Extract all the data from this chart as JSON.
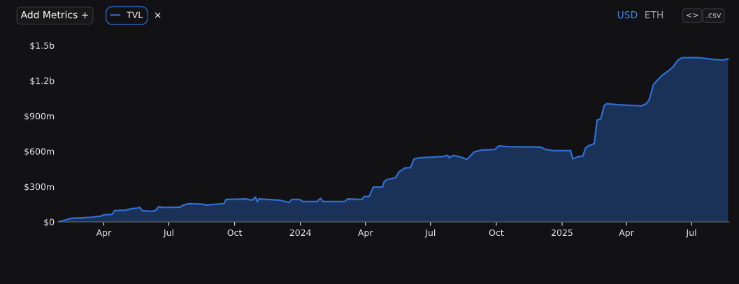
{
  "chart_data": {
    "type": "area",
    "legend": "top left",
    "grid": false,
    "marker": "none",
    "line_style": "solid",
    "annotations": [
      "Add Metrics +",
      "×",
      "USD",
      "ETH",
      "<>",
      ".csv"
    ],
    "xlim": [
      "2023-01-27",
      "2025-08-23"
    ],
    "xticks": [
      {
        "value": "2023-04-01",
        "label": "Apr"
      },
      {
        "value": "2023-07-01",
        "label": "Jul"
      },
      {
        "value": "2023-10-01",
        "label": "Oct"
      },
      {
        "value": "2024-01-01",
        "label": "2024"
      },
      {
        "value": "2024-04-01",
        "label": "Apr"
      },
      {
        "value": "2024-07-01",
        "label": "Jul"
      },
      {
        "value": "2024-10-01",
        "label": "Oct"
      },
      {
        "value": "2025-01-01",
        "label": "2025"
      },
      {
        "value": "2025-04-01",
        "label": "Apr"
      },
      {
        "value": "2025-07-01",
        "label": "Jul"
      }
    ],
    "ylim": [
      0,
      1500000000
    ],
    "yticks": [
      {
        "value": 0,
        "label": "$0"
      },
      {
        "value": 300000000,
        "label": "$300m"
      },
      {
        "value": 600000000,
        "label": "$600m"
      },
      {
        "value": 900000000,
        "label": "$900m"
      },
      {
        "value": 1200000000,
        "label": "$1.2b"
      },
      {
        "value": 1500000000,
        "label": "$1.5b"
      }
    ],
    "series": [
      {
        "name": "TVL",
        "color": "#2f6fd6",
        "x": [
          "2023-01-27",
          "2023-02-15",
          "2023-03-02",
          "2023-03-14",
          "2023-03-27",
          "2023-04-01",
          "2023-04-13",
          "2023-04-16",
          "2023-05-02",
          "2023-05-09",
          "2023-05-19",
          "2023-05-21",
          "2023-05-25",
          "2023-06-06",
          "2023-06-12",
          "2023-06-17",
          "2023-06-23",
          "2023-07-17",
          "2023-07-20",
          "2023-07-29",
          "2023-08-18",
          "2023-08-21",
          "2023-09-16",
          "2023-09-19",
          "2023-10-16",
          "2023-10-25",
          "2023-10-30",
          "2023-11-02",
          "2023-11-04",
          "2023-12-03",
          "2023-12-16",
          "2023-12-20",
          "2023-12-31",
          "2024-01-04",
          "2024-01-24",
          "2024-01-29",
          "2024-02-02",
          "2024-03-03",
          "2024-03-07",
          "2024-03-27",
          "2024-03-30",
          "2024-04-06",
          "2024-04-09",
          "2024-04-12",
          "2024-04-25",
          "2024-04-27",
          "2024-05-01",
          "2024-05-13",
          "2024-05-18",
          "2024-05-27",
          "2024-06-03",
          "2024-06-08",
          "2024-06-15",
          "2024-07-18",
          "2024-07-25",
          "2024-07-27",
          "2024-08-02",
          "2024-08-13",
          "2024-08-21",
          "2024-08-31",
          "2024-09-10",
          "2024-09-29",
          "2024-10-04",
          "2024-10-16",
          "2024-12-02",
          "2024-12-09",
          "2024-12-20",
          "2025-01-13",
          "2025-01-16",
          "2025-01-24",
          "2025-01-30",
          "2025-02-03",
          "2025-02-08",
          "2025-02-15",
          "2025-02-19",
          "2025-02-24",
          "2025-03-01",
          "2025-03-05",
          "2025-03-20",
          "2025-04-09",
          "2025-04-22",
          "2025-04-29",
          "2025-05-03",
          "2025-05-09",
          "2025-05-20",
          "2025-05-30",
          "2025-06-05",
          "2025-06-12",
          "2025-06-18",
          "2025-07-11",
          "2025-08-01",
          "2025-08-14",
          "2025-08-21"
        ],
        "values": [
          0,
          30000000,
          35000000,
          40000000,
          48000000,
          60000000,
          65000000,
          95000000,
          100000000,
          112000000,
          118000000,
          125000000,
          95000000,
          90000000,
          95000000,
          130000000,
          122000000,
          125000000,
          140000000,
          155000000,
          150000000,
          143000000,
          155000000,
          190000000,
          195000000,
          185000000,
          210000000,
          170000000,
          195000000,
          185000000,
          165000000,
          190000000,
          190000000,
          172000000,
          172000000,
          200000000,
          172000000,
          172000000,
          195000000,
          190000000,
          215000000,
          215000000,
          255000000,
          295000000,
          295000000,
          340000000,
          360000000,
          375000000,
          425000000,
          460000000,
          460000000,
          535000000,
          545000000,
          555000000,
          565000000,
          545000000,
          565000000,
          550000000,
          530000000,
          595000000,
          610000000,
          615000000,
          645000000,
          640000000,
          635000000,
          615000000,
          605000000,
          605000000,
          535000000,
          555000000,
          560000000,
          630000000,
          650000000,
          665000000,
          865000000,
          875000000,
          990000000,
          1005000000,
          995000000,
          990000000,
          985000000,
          1005000000,
          1040000000,
          1170000000,
          1240000000,
          1285000000,
          1315000000,
          1375000000,
          1395000000,
          1395000000,
          1380000000,
          1375000000,
          1385000000
        ]
      }
    ]
  }
}
